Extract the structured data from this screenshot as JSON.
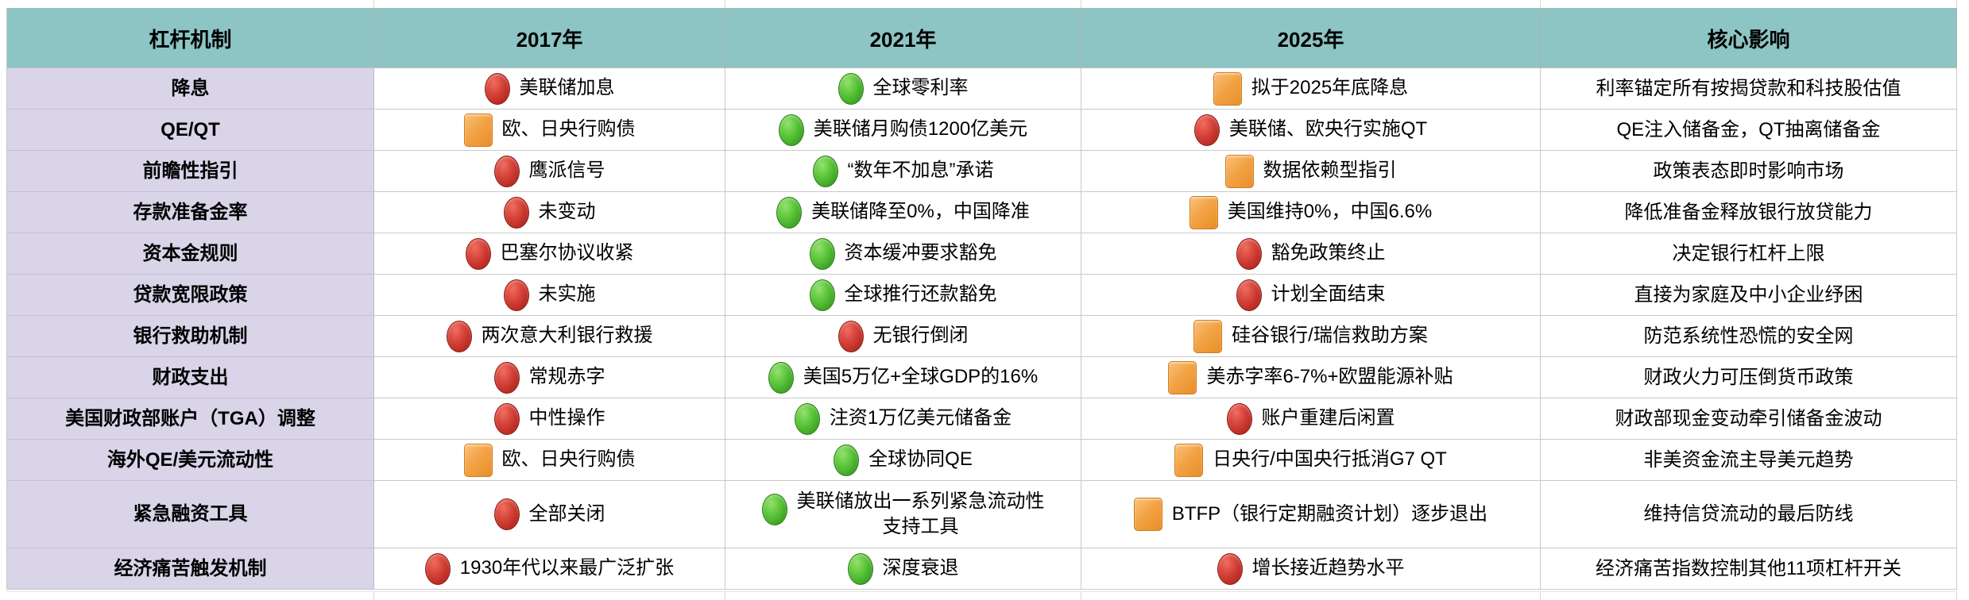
{
  "theme": {
    "header_bg": "#8dc4c4",
    "label_bg": "#d9d4e8",
    "gridline": "#c9c9c9",
    "status_red": "#ba2b23",
    "status_green": "#3ca423",
    "status_orange": "#f2a244"
  },
  "table": {
    "columns": [
      "杠杆机制",
      "2017年",
      "2021年",
      "2025年",
      "核心影响"
    ],
    "rows": [
      {
        "label": "降息",
        "y2017": {
          "status": "red",
          "text": "美联储加息"
        },
        "y2021": {
          "status": "green",
          "text": "全球零利率"
        },
        "y2025": {
          "status": "orange",
          "text": "拟于2025年底降息"
        },
        "impact": "利率锚定所有按揭贷款和科技股估值"
      },
      {
        "label": "QE/QT",
        "y2017": {
          "status": "orange",
          "text": "欧、日央行购债"
        },
        "y2021": {
          "status": "green",
          "text": "美联储月购债1200亿美元"
        },
        "y2025": {
          "status": "red",
          "text": "美联储、欧央行实施QT"
        },
        "impact": "QE注入储备金，QT抽离储备金"
      },
      {
        "label": "前瞻性指引",
        "y2017": {
          "status": "red",
          "text": "鹰派信号"
        },
        "y2021": {
          "status": "green",
          "text": "“数年不加息”承诺"
        },
        "y2025": {
          "status": "orange",
          "text": "数据依赖型指引"
        },
        "impact": "政策表态即时影响市场"
      },
      {
        "label": "存款准备金率",
        "y2017": {
          "status": "red",
          "text": "未变动"
        },
        "y2021": {
          "status": "green",
          "text": "美联储降至0%，中国降准"
        },
        "y2025": {
          "status": "orange",
          "text": "美国维持0%，中国6.6%"
        },
        "impact": "降低准备金释放银行放贷能力"
      },
      {
        "label": "资本金规则",
        "y2017": {
          "status": "red",
          "text": "巴塞尔协议收紧"
        },
        "y2021": {
          "status": "green",
          "text": "资本缓冲要求豁免"
        },
        "y2025": {
          "status": "red",
          "text": "豁免政策终止"
        },
        "impact": "决定银行杠杆上限"
      },
      {
        "label": "贷款宽限政策",
        "y2017": {
          "status": "red",
          "text": "未实施"
        },
        "y2021": {
          "status": "green",
          "text": "全球推行还款豁免"
        },
        "y2025": {
          "status": "red",
          "text": "计划全面结束"
        },
        "impact": "直接为家庭及中小企业纾困"
      },
      {
        "label": "银行救助机制",
        "y2017": {
          "status": "red",
          "text": "两次意大利银行救援"
        },
        "y2021": {
          "status": "red",
          "text": "无银行倒闭"
        },
        "y2025": {
          "status": "orange",
          "text": "硅谷银行/瑞信救助方案"
        },
        "impact": "防范系统性恐慌的安全网"
      },
      {
        "label": "财政支出",
        "y2017": {
          "status": "red",
          "text": "常规赤字"
        },
        "y2021": {
          "status": "green",
          "text": "美国5万亿+全球GDP的16%"
        },
        "y2025": {
          "status": "orange",
          "text": "美赤字率6-7%+欧盟能源补贴"
        },
        "impact": "财政火力可压倒货币政策"
      },
      {
        "label": "美国财政部账户（TGA）调整",
        "y2017": {
          "status": "red",
          "text": "中性操作"
        },
        "y2021": {
          "status": "green",
          "text": "注资1万亿美元储备金"
        },
        "y2025": {
          "status": "red",
          "text": "账户重建后闲置"
        },
        "impact": "财政部现金变动牵引储备金波动"
      },
      {
        "label": "海外QE/美元流动性",
        "y2017": {
          "status": "orange",
          "text": "欧、日央行购债"
        },
        "y2021": {
          "status": "green",
          "text": "全球协同QE"
        },
        "y2025": {
          "status": "orange",
          "text": "日央行/中国央行抵消G7 QT"
        },
        "impact": "非美资金流主导美元趋势"
      },
      {
        "label": "紧急融资工具",
        "y2017": {
          "status": "red",
          "text": "全部关闭"
        },
        "y2021": {
          "status": "green",
          "text": "美联储放出一系列紧急流动性\n支持工具"
        },
        "y2025": {
          "status": "orange",
          "text": "BTFP（银行定期融资计划）逐步退出"
        },
        "impact": "维持信贷流动的最后防线"
      },
      {
        "label": "经济痛苦触发机制",
        "y2017": {
          "status": "red",
          "text": "1930年代以来最广泛扩张"
        },
        "y2021": {
          "status": "green",
          "text": "深度衰退"
        },
        "y2025": {
          "status": "red",
          "text": "增长接近趋势水平"
        },
        "impact": "经济痛苦指数控制其他11项杠杆开关"
      }
    ]
  }
}
